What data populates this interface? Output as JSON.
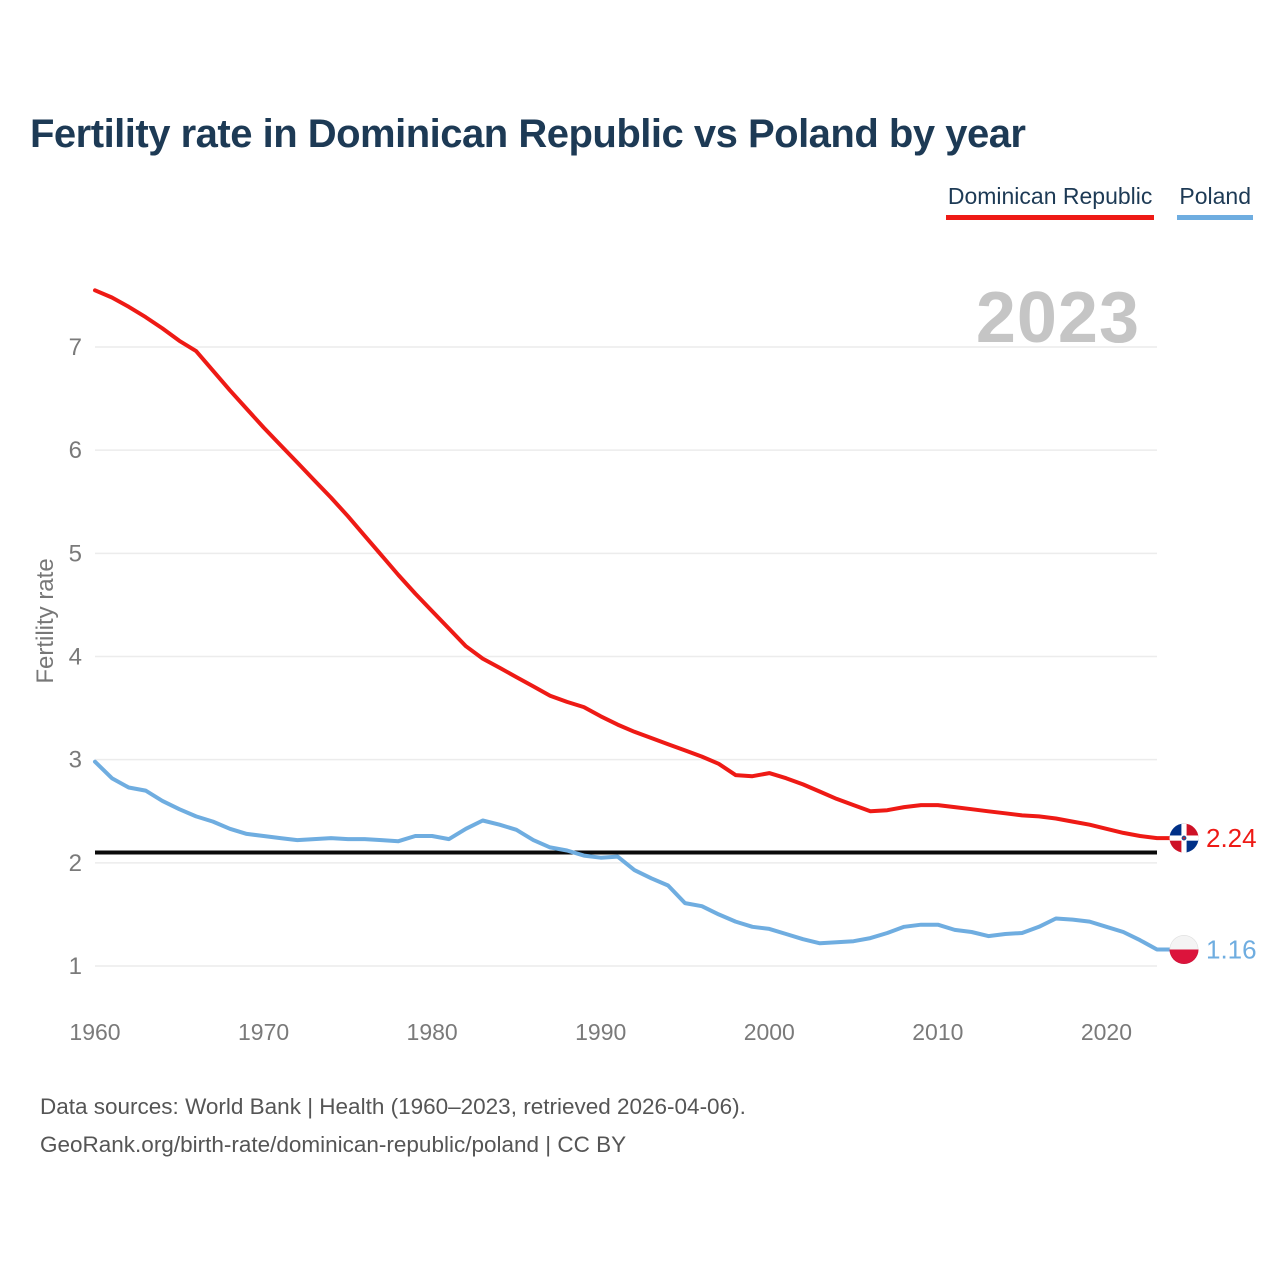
{
  "header": {
    "title": "Fertility rate in Dominican Republic vs Poland by year"
  },
  "chart_data": {
    "type": "line",
    "title": "Fertility rate in Dominican Republic vs Poland by year",
    "ylabel": "Fertility rate",
    "xlabel": "",
    "watermark": "2023",
    "x_range": [
      1960,
      2023
    ],
    "ylim": [
      1,
      7.6
    ],
    "yticks": [
      1,
      2,
      3,
      4,
      5,
      6,
      7
    ],
    "xticks": [
      1960,
      1970,
      1980,
      1990,
      2000,
      2010,
      2020
    ],
    "grid": "horizontal",
    "legend_position": "top-right",
    "reference_line": {
      "value": 2.1,
      "color": "#0a0a0a"
    },
    "years": [
      1960,
      1961,
      1962,
      1963,
      1964,
      1965,
      1966,
      1967,
      1968,
      1969,
      1970,
      1971,
      1972,
      1973,
      1974,
      1975,
      1976,
      1977,
      1978,
      1979,
      1980,
      1981,
      1982,
      1983,
      1984,
      1985,
      1986,
      1987,
      1988,
      1989,
      1990,
      1991,
      1992,
      1993,
      1994,
      1995,
      1996,
      1997,
      1998,
      1999,
      2000,
      2001,
      2002,
      2003,
      2004,
      2005,
      2006,
      2007,
      2008,
      2009,
      2010,
      2011,
      2012,
      2013,
      2014,
      2015,
      2016,
      2017,
      2018,
      2019,
      2020,
      2021,
      2022,
      2023
    ],
    "series": [
      {
        "name": "Dominican Republic",
        "color": "#ee1a15",
        "flag": "dominican-republic",
        "end_value": 2.24,
        "end_label": "2.24",
        "values": [
          7.55,
          7.48,
          7.39,
          7.29,
          7.18,
          7.06,
          6.96,
          6.77,
          6.58,
          6.4,
          6.22,
          6.05,
          5.88,
          5.71,
          5.54,
          5.36,
          5.17,
          4.98,
          4.79,
          4.61,
          4.44,
          4.27,
          4.1,
          3.98,
          3.89,
          3.8,
          3.71,
          3.62,
          3.56,
          3.51,
          3.42,
          3.34,
          3.27,
          3.21,
          3.15,
          3.09,
          3.03,
          2.96,
          2.85,
          2.84,
          2.87,
          2.82,
          2.76,
          2.69,
          2.62,
          2.56,
          2.5,
          2.51,
          2.54,
          2.56,
          2.56,
          2.54,
          2.52,
          2.5,
          2.48,
          2.46,
          2.45,
          2.43,
          2.4,
          2.37,
          2.33,
          2.29,
          2.26,
          2.24
        ]
      },
      {
        "name": "Poland",
        "color": "#6fade0",
        "flag": "poland",
        "end_value": 1.16,
        "end_label": "1.16",
        "values": [
          2.98,
          2.82,
          2.73,
          2.7,
          2.6,
          2.52,
          2.45,
          2.4,
          2.33,
          2.28,
          2.26,
          2.24,
          2.22,
          2.23,
          2.24,
          2.23,
          2.23,
          2.22,
          2.21,
          2.26,
          2.26,
          2.23,
          2.33,
          2.41,
          2.37,
          2.32,
          2.22,
          2.15,
          2.12,
          2.07,
          2.05,
          2.06,
          1.93,
          1.85,
          1.78,
          1.61,
          1.58,
          1.5,
          1.43,
          1.38,
          1.36,
          1.31,
          1.26,
          1.22,
          1.23,
          1.24,
          1.27,
          1.32,
          1.38,
          1.4,
          1.4,
          1.35,
          1.33,
          1.29,
          1.31,
          1.32,
          1.38,
          1.46,
          1.45,
          1.43,
          1.38,
          1.33,
          1.25,
          1.16
        ]
      }
    ],
    "flag_colors": {
      "dominican_republic_blue": "#003087",
      "dominican_republic_red": "#ce1126",
      "poland_white": "#f4f4f4",
      "poland_red": "#dc143c"
    }
  },
  "footer": {
    "line1": "Data sources: World Bank | Health (1960–2023, retrieved 2026-04-06).",
    "line2": "GeoRank.org/birth-rate/dominican-republic/poland | CC BY"
  }
}
